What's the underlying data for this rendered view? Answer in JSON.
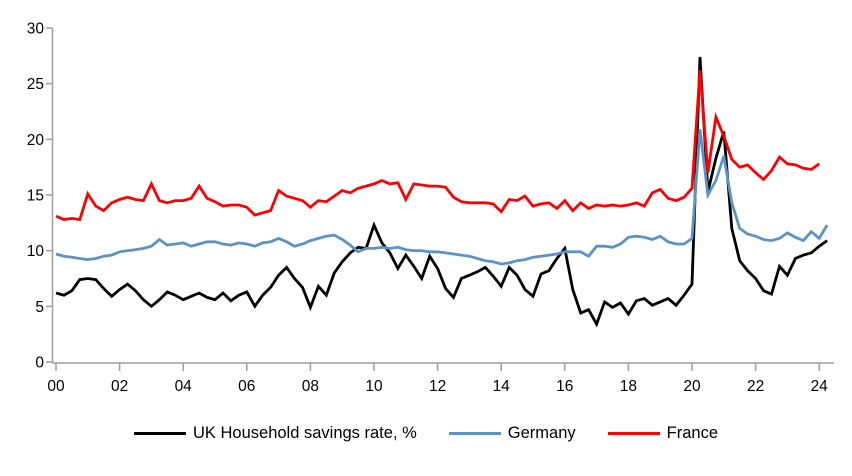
{
  "chart_data": {
    "type": "line",
    "title": "",
    "xlabel": "",
    "ylabel": "",
    "x_frequency": "quarterly",
    "x_start": "2000-Q1",
    "x_tick_labels": [
      "00",
      "02",
      "04",
      "06",
      "08",
      "10",
      "12",
      "14",
      "16",
      "18",
      "20",
      "22",
      "24"
    ],
    "y_ticks": [
      0,
      5,
      10,
      15,
      20,
      25,
      30
    ],
    "ylim": [
      0,
      30
    ],
    "grid": false,
    "legend_position": "bottom",
    "background_color": "#ffffff",
    "axis_color": "#9e9e9e",
    "tick_label_color": "#000000",
    "series": [
      {
        "name": "UK Household savings rate, %",
        "color": "#000000",
        "values": [
          6.2,
          6.0,
          6.4,
          7.4,
          7.5,
          7.4,
          6.6,
          5.9,
          6.5,
          7.0,
          6.4,
          5.6,
          5.0,
          5.6,
          6.3,
          6.0,
          5.6,
          5.9,
          6.2,
          5.8,
          5.6,
          6.2,
          5.5,
          6.0,
          6.3,
          5.0,
          6.0,
          6.7,
          7.8,
          8.5,
          7.5,
          6.7,
          4.9,
          6.8,
          6.0,
          8.0,
          9.0,
          9.8,
          10.3,
          10.2,
          12.3,
          10.7,
          9.8,
          8.4,
          9.6,
          8.6,
          7.5,
          9.5,
          8.4,
          6.6,
          5.8,
          7.5,
          7.8,
          8.1,
          8.5,
          7.7,
          6.8,
          8.5,
          7.8,
          6.5,
          5.9,
          7.9,
          8.2,
          9.3,
          10.2,
          6.5,
          4.4,
          4.7,
          3.4,
          5.4,
          4.9,
          5.3,
          4.3,
          5.5,
          5.7,
          5.1,
          5.4,
          5.7,
          5.1,
          6.0,
          7.0,
          27.4,
          15.3,
          18.3,
          20.7,
          12.0,
          9.1,
          8.2,
          7.5,
          6.4,
          6.1,
          8.6,
          7.8,
          9.3,
          9.6,
          9.8,
          10.4,
          10.9
        ]
      },
      {
        "name": "Germany",
        "color": "#5b93c8",
        "values": [
          9.7,
          9.5,
          9.4,
          9.3,
          9.2,
          9.3,
          9.5,
          9.6,
          9.9,
          10.0,
          10.1,
          10.2,
          10.4,
          11.0,
          10.5,
          10.6,
          10.7,
          10.4,
          10.6,
          10.8,
          10.8,
          10.6,
          10.5,
          10.7,
          10.6,
          10.4,
          10.7,
          10.8,
          11.1,
          10.8,
          10.4,
          10.6,
          10.9,
          11.1,
          11.3,
          11.4,
          11.0,
          10.5,
          9.9,
          10.2,
          10.2,
          10.3,
          10.2,
          10.3,
          10.1,
          10.0,
          10.0,
          9.9,
          9.9,
          9.8,
          9.7,
          9.6,
          9.5,
          9.3,
          9.1,
          9.0,
          8.8,
          8.9,
          9.1,
          9.2,
          9.4,
          9.5,
          9.6,
          9.7,
          9.9,
          9.9,
          9.9,
          9.5,
          10.4,
          10.4,
          10.3,
          10.6,
          11.2,
          11.3,
          11.2,
          11.0,
          11.3,
          10.8,
          10.6,
          10.6,
          11.1,
          20.9,
          15.0,
          16.3,
          18.5,
          14.3,
          12.0,
          11.5,
          11.3,
          11.0,
          10.9,
          11.1,
          11.6,
          11.2,
          10.9,
          11.7,
          11.1,
          12.3
        ]
      },
      {
        "name": "France",
        "color": "#fe0000",
        "values": [
          13.1,
          12.8,
          12.9,
          12.8,
          15.1,
          14.0,
          13.6,
          14.3,
          14.6,
          14.8,
          14.6,
          14.5,
          16.0,
          14.5,
          14.3,
          14.5,
          14.5,
          14.7,
          15.8,
          14.7,
          14.4,
          14.0,
          14.1,
          14.1,
          13.9,
          13.2,
          13.4,
          13.6,
          15.4,
          14.9,
          14.7,
          14.5,
          13.9,
          14.5,
          14.4,
          14.9,
          15.4,
          15.2,
          15.6,
          15.8,
          16.0,
          16.3,
          16.0,
          16.1,
          14.6,
          16.0,
          15.9,
          15.8,
          15.8,
          15.7,
          14.8,
          14.4,
          14.3,
          14.3,
          14.3,
          14.2,
          13.5,
          14.6,
          14.5,
          14.9,
          14.0,
          14.2,
          14.3,
          13.8,
          14.5,
          13.6,
          14.3,
          13.8,
          14.1,
          14.0,
          14.1,
          14.0,
          14.1,
          14.3,
          14.0,
          15.2,
          15.5,
          14.7,
          14.5,
          14.8,
          15.6,
          26.2,
          17.0,
          22.0,
          20.3,
          18.2,
          17.5,
          17.7,
          17.0,
          16.4,
          17.2,
          18.4,
          17.8,
          17.7,
          17.4,
          17.3,
          17.8
        ]
      }
    ]
  }
}
